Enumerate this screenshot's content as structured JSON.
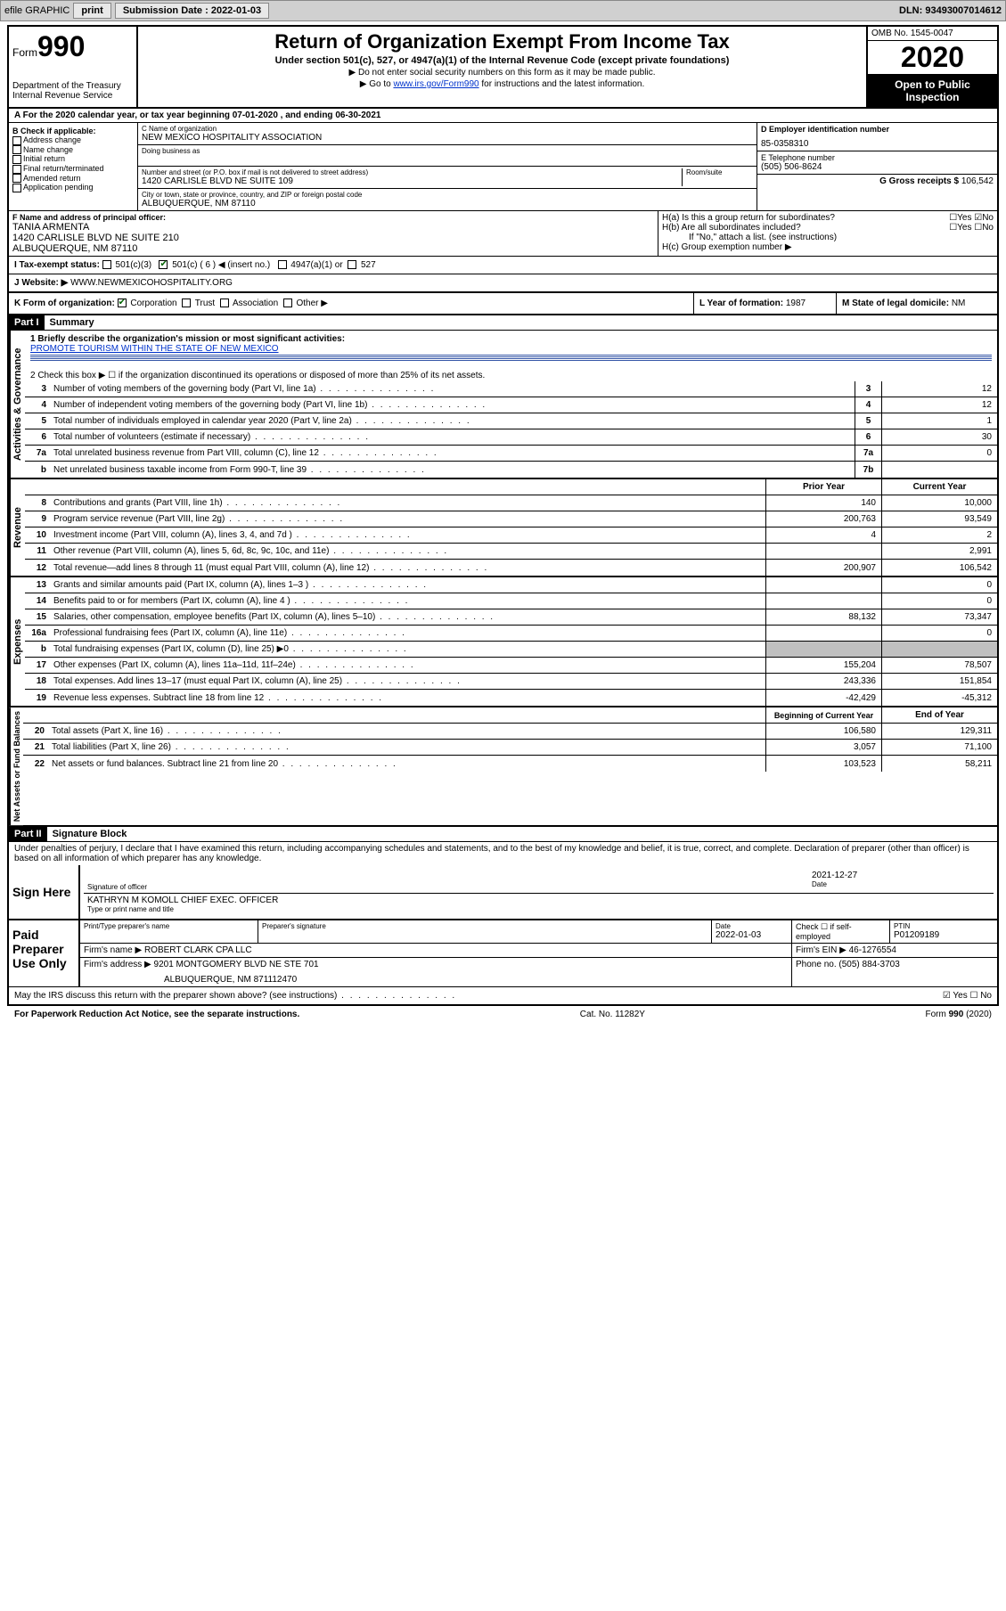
{
  "topbar": {
    "efile": "efile GRAPHIC",
    "print": "print",
    "subdate_label": "Submission Date : 2022-01-03",
    "dln": "DLN: 93493007014612"
  },
  "header": {
    "form_label": "Form",
    "form_no": "990",
    "dept": "Department of the Treasury",
    "irs": "Internal Revenue Service",
    "title": "Return of Organization Exempt From Income Tax",
    "subtitle": "Under section 501(c), 527, or 4947(a)(1) of the Internal Revenue Code (except private foundations)",
    "instruct1": "▶ Do not enter social security numbers on this form as it may be made public.",
    "instruct2_pre": "▶ Go to ",
    "instruct2_link": "www.irs.gov/Form990",
    "instruct2_post": " for instructions and the latest information.",
    "omb": "OMB No. 1545-0047",
    "year": "2020",
    "open": "Open to Public Inspection"
  },
  "sectionA": "A For the 2020 calendar year, or tax year beginning 07-01-2020   , and ending 06-30-2021",
  "boxB": {
    "label": "B Check if applicable:",
    "items": [
      "Address change",
      "Name change",
      "Initial return",
      "Final return/terminated",
      "Amended return",
      "Application pending"
    ]
  },
  "boxC": {
    "name_label": "C Name of organization",
    "name": "NEW MEXICO HOSPITALITY ASSOCIATION",
    "dba_label": "Doing business as",
    "street_label": "Number and street (or P.O. box if mail is not delivered to street address)",
    "room_label": "Room/suite",
    "street": "1420 CARLISLE BLVD NE SUITE 109",
    "city_label": "City or town, state or province, country, and ZIP or foreign postal code",
    "city": "ALBUQUERQUE, NM  87110"
  },
  "boxD": {
    "label": "D Employer identification number",
    "val": "85-0358310"
  },
  "boxE": {
    "label": "E Telephone number",
    "val": "(505) 506-8624"
  },
  "boxG": {
    "label": "G Gross receipts $",
    "val": "106,542"
  },
  "boxF": {
    "label": "F Name and address of principal officer:",
    "name": "TANIA ARMENTA",
    "addr1": "1420 CARLISLE BLVD NE SUITE 210",
    "addr2": "ALBUQUERQUE, NM  87110"
  },
  "boxH": {
    "a": "H(a)  Is this a group return for subordinates?",
    "b": "H(b)  Are all subordinates included?",
    "b_note": "If \"No,\" attach a list. (see instructions)",
    "c": "H(c)  Group exemption number ▶"
  },
  "boxI": {
    "label": "I  Tax-exempt status:",
    "opt1": "501(c)(3)",
    "opt2": "501(c) ( 6 ) ◀ (insert no.)",
    "opt3": "4947(a)(1) or",
    "opt4": "527"
  },
  "boxJ": {
    "label": "J  Website: ▶",
    "val": "WWW.NEWMEXICOHOSPITALITY.ORG"
  },
  "boxK": {
    "label": "K Form of organization:",
    "opts": [
      "Corporation",
      "Trust",
      "Association",
      "Other ▶"
    ]
  },
  "boxL": {
    "label": "L Year of formation:",
    "val": "1987"
  },
  "boxM": {
    "label": "M State of legal domicile:",
    "val": "NM"
  },
  "part1": {
    "header": "Part I",
    "title": "Summary",
    "vtab1": "Activities & Governance",
    "vtab2": "Revenue",
    "vtab3": "Expenses",
    "vtab4": "Net Assets or Fund Balances",
    "line1_label": "1  Briefly describe the organization's mission or most significant activities:",
    "line1_val": "PROMOTE TOURISM WITHIN THE STATE OF NEW MEXICO",
    "line2": "2   Check this box ▶ ☐  if the organization discontinued its operations or disposed of more than 25% of its net assets.",
    "rows_gov": [
      {
        "n": "3",
        "d": "Number of voting members of the governing body (Part VI, line 1a)",
        "box": "3",
        "v": "12"
      },
      {
        "n": "4",
        "d": "Number of independent voting members of the governing body (Part VI, line 1b)",
        "box": "4",
        "v": "12"
      },
      {
        "n": "5",
        "d": "Total number of individuals employed in calendar year 2020 (Part V, line 2a)",
        "box": "5",
        "v": "1"
      },
      {
        "n": "6",
        "d": "Total number of volunteers (estimate if necessary)",
        "box": "6",
        "v": "30"
      },
      {
        "n": "7a",
        "d": "Total unrelated business revenue from Part VIII, column (C), line 12",
        "box": "7a",
        "v": "0"
      },
      {
        "n": "b",
        "d": "Net unrelated business taxable income from Form 990-T, line 39",
        "box": "7b",
        "v": ""
      }
    ],
    "col_prior": "Prior Year",
    "col_curr": "Current Year",
    "rows_rev": [
      {
        "n": "8",
        "d": "Contributions and grants (Part VIII, line 1h)",
        "p": "140",
        "c": "10,000"
      },
      {
        "n": "9",
        "d": "Program service revenue (Part VIII, line 2g)",
        "p": "200,763",
        "c": "93,549"
      },
      {
        "n": "10",
        "d": "Investment income (Part VIII, column (A), lines 3, 4, and 7d )",
        "p": "4",
        "c": "2"
      },
      {
        "n": "11",
        "d": "Other revenue (Part VIII, column (A), lines 5, 6d, 8c, 9c, 10c, and 11e)",
        "p": "",
        "c": "2,991"
      },
      {
        "n": "12",
        "d": "Total revenue—add lines 8 through 11 (must equal Part VIII, column (A), line 12)",
        "p": "200,907",
        "c": "106,542"
      }
    ],
    "rows_exp": [
      {
        "n": "13",
        "d": "Grants and similar amounts paid (Part IX, column (A), lines 1–3 )",
        "p": "",
        "c": "0"
      },
      {
        "n": "14",
        "d": "Benefits paid to or for members (Part IX, column (A), line 4 )",
        "p": "",
        "c": "0"
      },
      {
        "n": "15",
        "d": "Salaries, other compensation, employee benefits (Part IX, column (A), lines 5–10)",
        "p": "88,132",
        "c": "73,347"
      },
      {
        "n": "16a",
        "d": "Professional fundraising fees (Part IX, column (A), line 11e)",
        "p": "",
        "c": "0"
      },
      {
        "n": "b",
        "d": "Total fundraising expenses (Part IX, column (D), line 25) ▶0",
        "p": "shaded",
        "c": "shaded"
      },
      {
        "n": "17",
        "d": "Other expenses (Part IX, column (A), lines 11a–11d, 11f–24e)",
        "p": "155,204",
        "c": "78,507"
      },
      {
        "n": "18",
        "d": "Total expenses. Add lines 13–17 (must equal Part IX, column (A), line 25)",
        "p": "243,336",
        "c": "151,854"
      },
      {
        "n": "19",
        "d": "Revenue less expenses. Subtract line 18 from line 12",
        "p": "-42,429",
        "c": "-45,312"
      }
    ],
    "col_beg": "Beginning of Current Year",
    "col_end": "End of Year",
    "rows_net": [
      {
        "n": "20",
        "d": "Total assets (Part X, line 16)",
        "p": "106,580",
        "c": "129,311"
      },
      {
        "n": "21",
        "d": "Total liabilities (Part X, line 26)",
        "p": "3,057",
        "c": "71,100"
      },
      {
        "n": "22",
        "d": "Net assets or fund balances. Subtract line 21 from line 20",
        "p": "103,523",
        "c": "58,211"
      }
    ]
  },
  "part2": {
    "header": "Part II",
    "title": "Signature Block",
    "penalty": "Under penalties of perjury, I declare that I have examined this return, including accompanying schedules and statements, and to the best of my knowledge and belief, it is true, correct, and complete. Declaration of preparer (other than officer) is based on all information of which preparer has any knowledge.",
    "sign_here": "Sign Here",
    "sig_officer": "Signature of officer",
    "sig_date": "Date",
    "sig_date_val": "2021-12-27",
    "officer_name": "KATHRYN M KOMOLL CHIEF EXEC. OFFICER",
    "type_name": "Type or print name and title",
    "paid": "Paid Preparer Use Only",
    "prep_name_label": "Print/Type preparer's name",
    "prep_sig_label": "Preparer's signature",
    "prep_date_label": "Date",
    "prep_date": "2022-01-03",
    "prep_check": "Check ☐ if self-employed",
    "ptin_label": "PTIN",
    "ptin": "P01209189",
    "firm_name_label": "Firm's name    ▶",
    "firm_name": "ROBERT CLARK CPA LLC",
    "firm_ein_label": "Firm's EIN ▶",
    "firm_ein": "46-1276554",
    "firm_addr_label": "Firm's address ▶",
    "firm_addr1": "9201 MONTGOMERY BLVD NE STE 701",
    "firm_addr2": "ALBUQUERQUE, NM  871112470",
    "phone_label": "Phone no.",
    "phone": "(505) 884-3703",
    "may_irs": "May the IRS discuss this return with the preparer shown above? (see instructions)"
  },
  "footer": {
    "paperwork": "For Paperwork Reduction Act Notice, see the separate instructions.",
    "catno": "Cat. No. 11282Y",
    "formno": "Form 990 (2020)"
  }
}
